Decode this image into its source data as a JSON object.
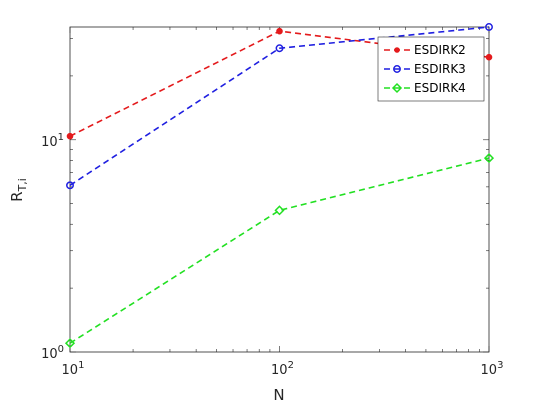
{
  "chart_data": {
    "type": "line",
    "xscale": "log",
    "yscale": "log",
    "xlabel": "N",
    "ylabel": "R",
    "ylabel_sub": "T,i",
    "x": [
      10,
      100,
      1000
    ],
    "xlim": [
      10,
      1000
    ],
    "ylim": [
      1,
      34
    ],
    "xticks": [
      {
        "base": "10",
        "exp": "1"
      },
      {
        "base": "10",
        "exp": "2"
      },
      {
        "base": "10",
        "exp": "3"
      }
    ],
    "yticks": [
      {
        "base": "10",
        "exp": "0"
      },
      {
        "base": "10",
        "exp": "1"
      }
    ],
    "legend_position": "top-right",
    "grid": false,
    "series": [
      {
        "name": "ESDIRK2",
        "values": [
          10.4,
          32.5,
          24.5
        ],
        "color": "#e41a1c",
        "marker": "dot",
        "linestyle": "dashed"
      },
      {
        "name": "ESDIRK3",
        "values": [
          6.1,
          27.0,
          34.0
        ],
        "color": "#1f1fe0",
        "marker": "circle",
        "linestyle": "dashed"
      },
      {
        "name": "ESDIRK4",
        "values": [
          1.1,
          4.65,
          8.2
        ],
        "color": "#22e022",
        "marker": "diamond",
        "linestyle": "dashed"
      }
    ]
  }
}
